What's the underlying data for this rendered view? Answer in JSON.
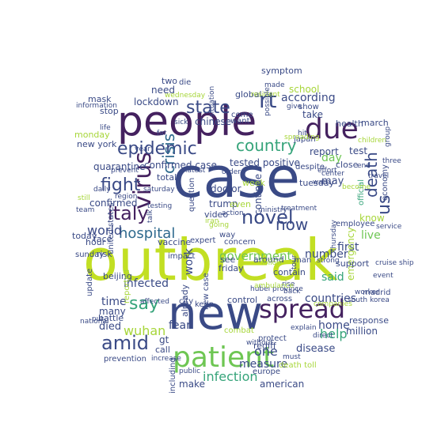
{
  "palette": {
    "dark_purple": "#44215f",
    "indigo": "#3a4a86",
    "blue": "#2f6a8e",
    "teal": "#26868e",
    "green": "#36a47a",
    "light_green": "#6ec653",
    "lime": "#c2df23",
    "yellow_green": "#a7d63a"
  },
  "words": [
    {
      "text": "outbreak",
      "color": "#c2df23"
    },
    {
      "text": "case",
      "color": "#3a4a86"
    },
    {
      "text": "people",
      "color": "#44215f"
    },
    {
      "text": "new",
      "color": "#3a4a86"
    },
    {
      "text": "patient",
      "color": "#6ec653"
    },
    {
      "text": "spread",
      "color": "#44215f"
    },
    {
      "text": "due",
      "color": "#44215f"
    },
    {
      "text": "virus",
      "color": "#44215f"
    },
    {
      "text": "epidemic",
      "color": "#3a4a86"
    },
    {
      "text": "country",
      "color": "#36a47a"
    },
    {
      "text": "state",
      "color": "#3a4a86"
    },
    {
      "text": "rt",
      "color": "#3a4a86"
    },
    {
      "text": "crisis",
      "color": "#2f6a8e"
    },
    {
      "text": "italy",
      "color": "#44215f"
    },
    {
      "text": "fight",
      "color": "#3a4a86"
    },
    {
      "text": "novel",
      "color": "#3a4a86"
    },
    {
      "text": "hospital",
      "color": "#2f6a8e"
    },
    {
      "text": "amid",
      "color": "#3a4a86"
    },
    {
      "text": "say",
      "color": "#36a47a"
    },
    {
      "text": "death",
      "color": "#3a4a86"
    },
    {
      "text": "now",
      "color": "#3a4a86"
    },
    {
      "text": "us",
      "color": "#3a4a86"
    },
    {
      "text": "government",
      "color": "#6ec653"
    },
    {
      "text": "infection",
      "color": "#36a47a"
    },
    {
      "text": "lockdown",
      "color": "#3a4a86"
    },
    {
      "text": "chinese",
      "color": "#3a4a86"
    },
    {
      "text": "according",
      "color": "#3a4a86"
    },
    {
      "text": "quarantine",
      "color": "#3a4a86"
    },
    {
      "text": "confirmed case",
      "color": "#3a4a86"
    },
    {
      "text": "tested positive",
      "color": "#3a4a86"
    },
    {
      "text": "confirmed",
      "color": "#3a4a86"
    },
    {
      "text": "world",
      "color": "#3a4a86"
    },
    {
      "text": "wuhan",
      "color": "#a7d63a"
    },
    {
      "text": "infected",
      "color": "#3a4a86"
    },
    {
      "text": "time",
      "color": "#3a4a86"
    },
    {
      "text": "fear",
      "color": "#3a4a86"
    },
    {
      "text": "help",
      "color": "#36a47a"
    },
    {
      "text": "one",
      "color": "#3a4a86"
    },
    {
      "text": "said",
      "color": "#36a47a"
    },
    {
      "text": "first",
      "color": "#3a4a86"
    },
    {
      "text": "number",
      "color": "#3a4a86"
    },
    {
      "text": "countries",
      "color": "#3a4a86"
    },
    {
      "text": "home",
      "color": "#3a4a86"
    },
    {
      "text": "measure",
      "color": "#3a4a86"
    },
    {
      "text": "american",
      "color": "#3a4a86"
    },
    {
      "text": "disease",
      "color": "#3a4a86"
    },
    {
      "text": "response",
      "color": "#3a4a86"
    },
    {
      "text": "day",
      "color": "#6ec653"
    },
    {
      "text": "live",
      "color": "#6ec653"
    },
    {
      "text": "take",
      "color": "#3a4a86"
    },
    {
      "text": "test",
      "color": "#3a4a86"
    },
    {
      "text": "close",
      "color": "#3a4a86"
    },
    {
      "text": "school",
      "color": "#a7d63a"
    },
    {
      "text": "report",
      "color": "#3a4a86"
    },
    {
      "text": "need",
      "color": "#3a4a86"
    },
    {
      "text": "two",
      "color": "#3a4a86"
    },
    {
      "text": "mask",
      "color": "#3a4a86"
    },
    {
      "text": "doctor",
      "color": "#3a4a86"
    },
    {
      "text": "trump",
      "color": "#3a4a86"
    },
    {
      "text": "video",
      "color": "#3a4a86"
    },
    {
      "text": "work",
      "color": "#3a4a86"
    },
    {
      "text": "many",
      "color": "#3a4a86"
    },
    {
      "text": "died",
      "color": "#3a4a86"
    },
    {
      "text": "gt",
      "color": "#3a4a86"
    },
    {
      "text": "call",
      "color": "#3a4a86"
    },
    {
      "text": "make",
      "color": "#3a4a86"
    },
    {
      "text": "already",
      "color": "#3a4a86"
    },
    {
      "text": "rediff",
      "color": "#3a4a86"
    },
    {
      "text": "europe",
      "color": "#3a4a86"
    },
    {
      "text": "death toll",
      "color": "#a7d63a"
    },
    {
      "text": "million",
      "color": "#3a4a86"
    },
    {
      "text": "may",
      "color": "#3a4a86"
    },
    {
      "text": "tuesday",
      "color": "#3a4a86"
    },
    {
      "text": "hour",
      "color": "#3a4a86"
    },
    {
      "text": "face",
      "color": "#3a4a86"
    },
    {
      "text": "today",
      "color": "#3a4a86"
    },
    {
      "text": "monday",
      "color": "#a7d63a"
    },
    {
      "text": "new york",
      "color": "#3a4a86"
    },
    {
      "text": "stop",
      "color": "#3a4a86"
    },
    {
      "text": "health",
      "color": "#3a4a86"
    },
    {
      "text": "march",
      "color": "#3a4a86"
    },
    {
      "text": "know",
      "color": "#a7d63a"
    },
    {
      "text": "official",
      "color": "#36a47a"
    },
    {
      "text": "economy",
      "color": "#3a4a86"
    },
    {
      "text": "employee",
      "color": "#3a4a86"
    },
    {
      "text": "friday",
      "color": "#3a4a86"
    },
    {
      "text": "see",
      "color": "#3a4a86"
    },
    {
      "text": "beijing",
      "color": "#3a4a86"
    },
    {
      "text": "city",
      "color": "#3a4a86"
    },
    {
      "text": "update",
      "color": "#3a4a86"
    },
    {
      "text": "battle",
      "color": "#3a4a86"
    },
    {
      "text": "control",
      "color": "#3a4a86"
    },
    {
      "text": "across",
      "color": "#3a4a86"
    },
    {
      "text": "madrid",
      "color": "#3a4a86"
    },
    {
      "text": "continue",
      "color": "#3a4a86"
    },
    {
      "text": "around",
      "color": "#3a4a86"
    },
    {
      "text": "contain",
      "color": "#3a4a86"
    },
    {
      "text": "emergency",
      "color": "#a7d63a"
    },
    {
      "text": "vaccine",
      "color": "#3a4a86"
    },
    {
      "text": "expert",
      "color": "#3a4a86"
    },
    {
      "text": "concern",
      "color": "#3a4a86"
    },
    {
      "text": "way",
      "color": "#3a4a86"
    },
    {
      "text": "total",
      "color": "#3a4a86"
    },
    {
      "text": "week",
      "color": "#a7d63a"
    },
    {
      "text": "even",
      "color": "#a7d63a"
    },
    {
      "text": "risk",
      "color": "#3a4a86"
    },
    {
      "text": "sunday",
      "color": "#3a4a86"
    },
    {
      "text": "united states",
      "color": "#3a4a86"
    },
    {
      "text": "support",
      "color": "#3a4a86"
    },
    {
      "text": "new case",
      "color": "#3a4a86"
    },
    {
      "text": "including",
      "color": "#3a4a86"
    },
    {
      "text": "global",
      "color": "#3a4a86"
    },
    {
      "text": "symptom",
      "color": "#3a4a86"
    },
    {
      "text": "die",
      "color": "#3a4a86"
    },
    {
      "text": "show",
      "color": "#3a4a86"
    },
    {
      "text": "japan",
      "color": "#3a4a86"
    },
    {
      "text": "want",
      "color": "#3a4a86"
    },
    {
      "text": "come",
      "color": "#3a4a86"
    },
    {
      "text": "order",
      "color": "#3a4a86"
    },
    {
      "text": "latest",
      "color": "#3a4a86"
    },
    {
      "text": "despite",
      "color": "#3a4a86"
    },
    {
      "text": "three",
      "color": "#3a4a86"
    },
    {
      "text": "end",
      "color": "#3a4a86"
    },
    {
      "text": "effort",
      "color": "#3a4a86"
    },
    {
      "text": "become",
      "color": "#a7d63a"
    },
    {
      "text": "treatment",
      "color": "#3a4a86"
    },
    {
      "text": "prevent",
      "color": "#3a4a86"
    },
    {
      "text": "information",
      "color": "#3a4a86"
    },
    {
      "text": "saturday",
      "color": "#3a4a86"
    },
    {
      "text": "testing",
      "color": "#3a4a86"
    },
    {
      "text": "thursday",
      "color": "#3a4a86"
    },
    {
      "text": "question",
      "color": "#3a4a86"
    },
    {
      "text": "ministry",
      "color": "#3a4a86"
    },
    {
      "text": "reported",
      "color": "#a7d63a"
    },
    {
      "text": "impact",
      "color": "#3a4a86"
    },
    {
      "text": "affected",
      "color": "#3a4a86"
    },
    {
      "text": "keep",
      "color": "#3a4a86"
    },
    {
      "text": "combat",
      "color": "#a7d63a"
    },
    {
      "text": "protect",
      "color": "#3a4a86"
    },
    {
      "text": "public",
      "color": "#3a4a86"
    },
    {
      "text": "prevention",
      "color": "#3a4a86"
    },
    {
      "text": "increase",
      "color": "#3a4a86"
    },
    {
      "text": "explain",
      "color": "#3a4a86"
    },
    {
      "text": "must",
      "color": "#3a4a86"
    },
    {
      "text": "direct",
      "color": "#3a4a86"
    },
    {
      "text": "south korea",
      "color": "#3a4a86"
    },
    {
      "text": "worker",
      "color": "#3a4a86"
    },
    {
      "text": "event",
      "color": "#3a4a86"
    },
    {
      "text": "cruise ship",
      "color": "#3a4a86"
    },
    {
      "text": "service",
      "color": "#3a4a86"
    },
    {
      "text": "man",
      "color": "#3a4a86"
    },
    {
      "text": "companies",
      "color": "#a7d63a"
    },
    {
      "text": "follow",
      "color": "#a7d63a"
    },
    {
      "text": "wednesday",
      "color": "#a7d63a"
    },
    {
      "text": "life",
      "color": "#3a4a86"
    },
    {
      "text": "team",
      "color": "#3a4a86"
    },
    {
      "text": "put",
      "color": "#3a4a86"
    },
    {
      "text": "national",
      "color": "#3a4a86"
    },
    {
      "text": "daily",
      "color": "#3a4a86"
    },
    {
      "text": "still",
      "color": "#a7d63a"
    },
    {
      "text": "region",
      "color": "#3a4a86"
    },
    {
      "text": "year",
      "color": "#3a4a86"
    },
    {
      "text": "far",
      "color": "#3a4a86"
    },
    {
      "text": "spreading",
      "color": "#a7d63a"
    },
    {
      "text": "hit",
      "color": "#3a4a86"
    },
    {
      "text": "resident",
      "color": "#a7d63a"
    },
    {
      "text": "made",
      "color": "#3a4a86"
    },
    {
      "text": "give",
      "color": "#3a4a86"
    },
    {
      "text": "children",
      "color": "#a7d63a"
    },
    {
      "text": "travel",
      "color": "#3a4a86"
    },
    {
      "text": "warn",
      "color": "#3a4a86"
    },
    {
      "text": "center",
      "color": "#3a4a86"
    },
    {
      "text": "group",
      "color": "#3a4a86"
    },
    {
      "text": "rise",
      "color": "#3a4a86"
    },
    {
      "text": "back",
      "color": "#3a4a86"
    },
    {
      "text": "hubei province",
      "color": "#3a4a86"
    },
    {
      "text": "without",
      "color": "#3a4a86"
    },
    {
      "text": "iran",
      "color": "#a7d63a"
    },
    {
      "text": "action",
      "color": "#3a4a86"
    },
    {
      "text": "sick",
      "color": "#3a4a86"
    },
    {
      "text": "going",
      "color": "#a7d63a"
    },
    {
      "text": "strong",
      "color": "#3a4a86"
    },
    {
      "text": "ambulance",
      "color": "#a7d63a"
    },
    {
      "text": "tour",
      "color": "#3a4a86"
    },
    {
      "text": "possible",
      "color": "#3a4a86"
    },
    {
      "text": "situation",
      "color": "#3a4a86"
    },
    {
      "text": "talk",
      "color": "#3a4a86"
    },
    {
      "text": "fighting",
      "color": "#a7d63a"
    }
  ]
}
